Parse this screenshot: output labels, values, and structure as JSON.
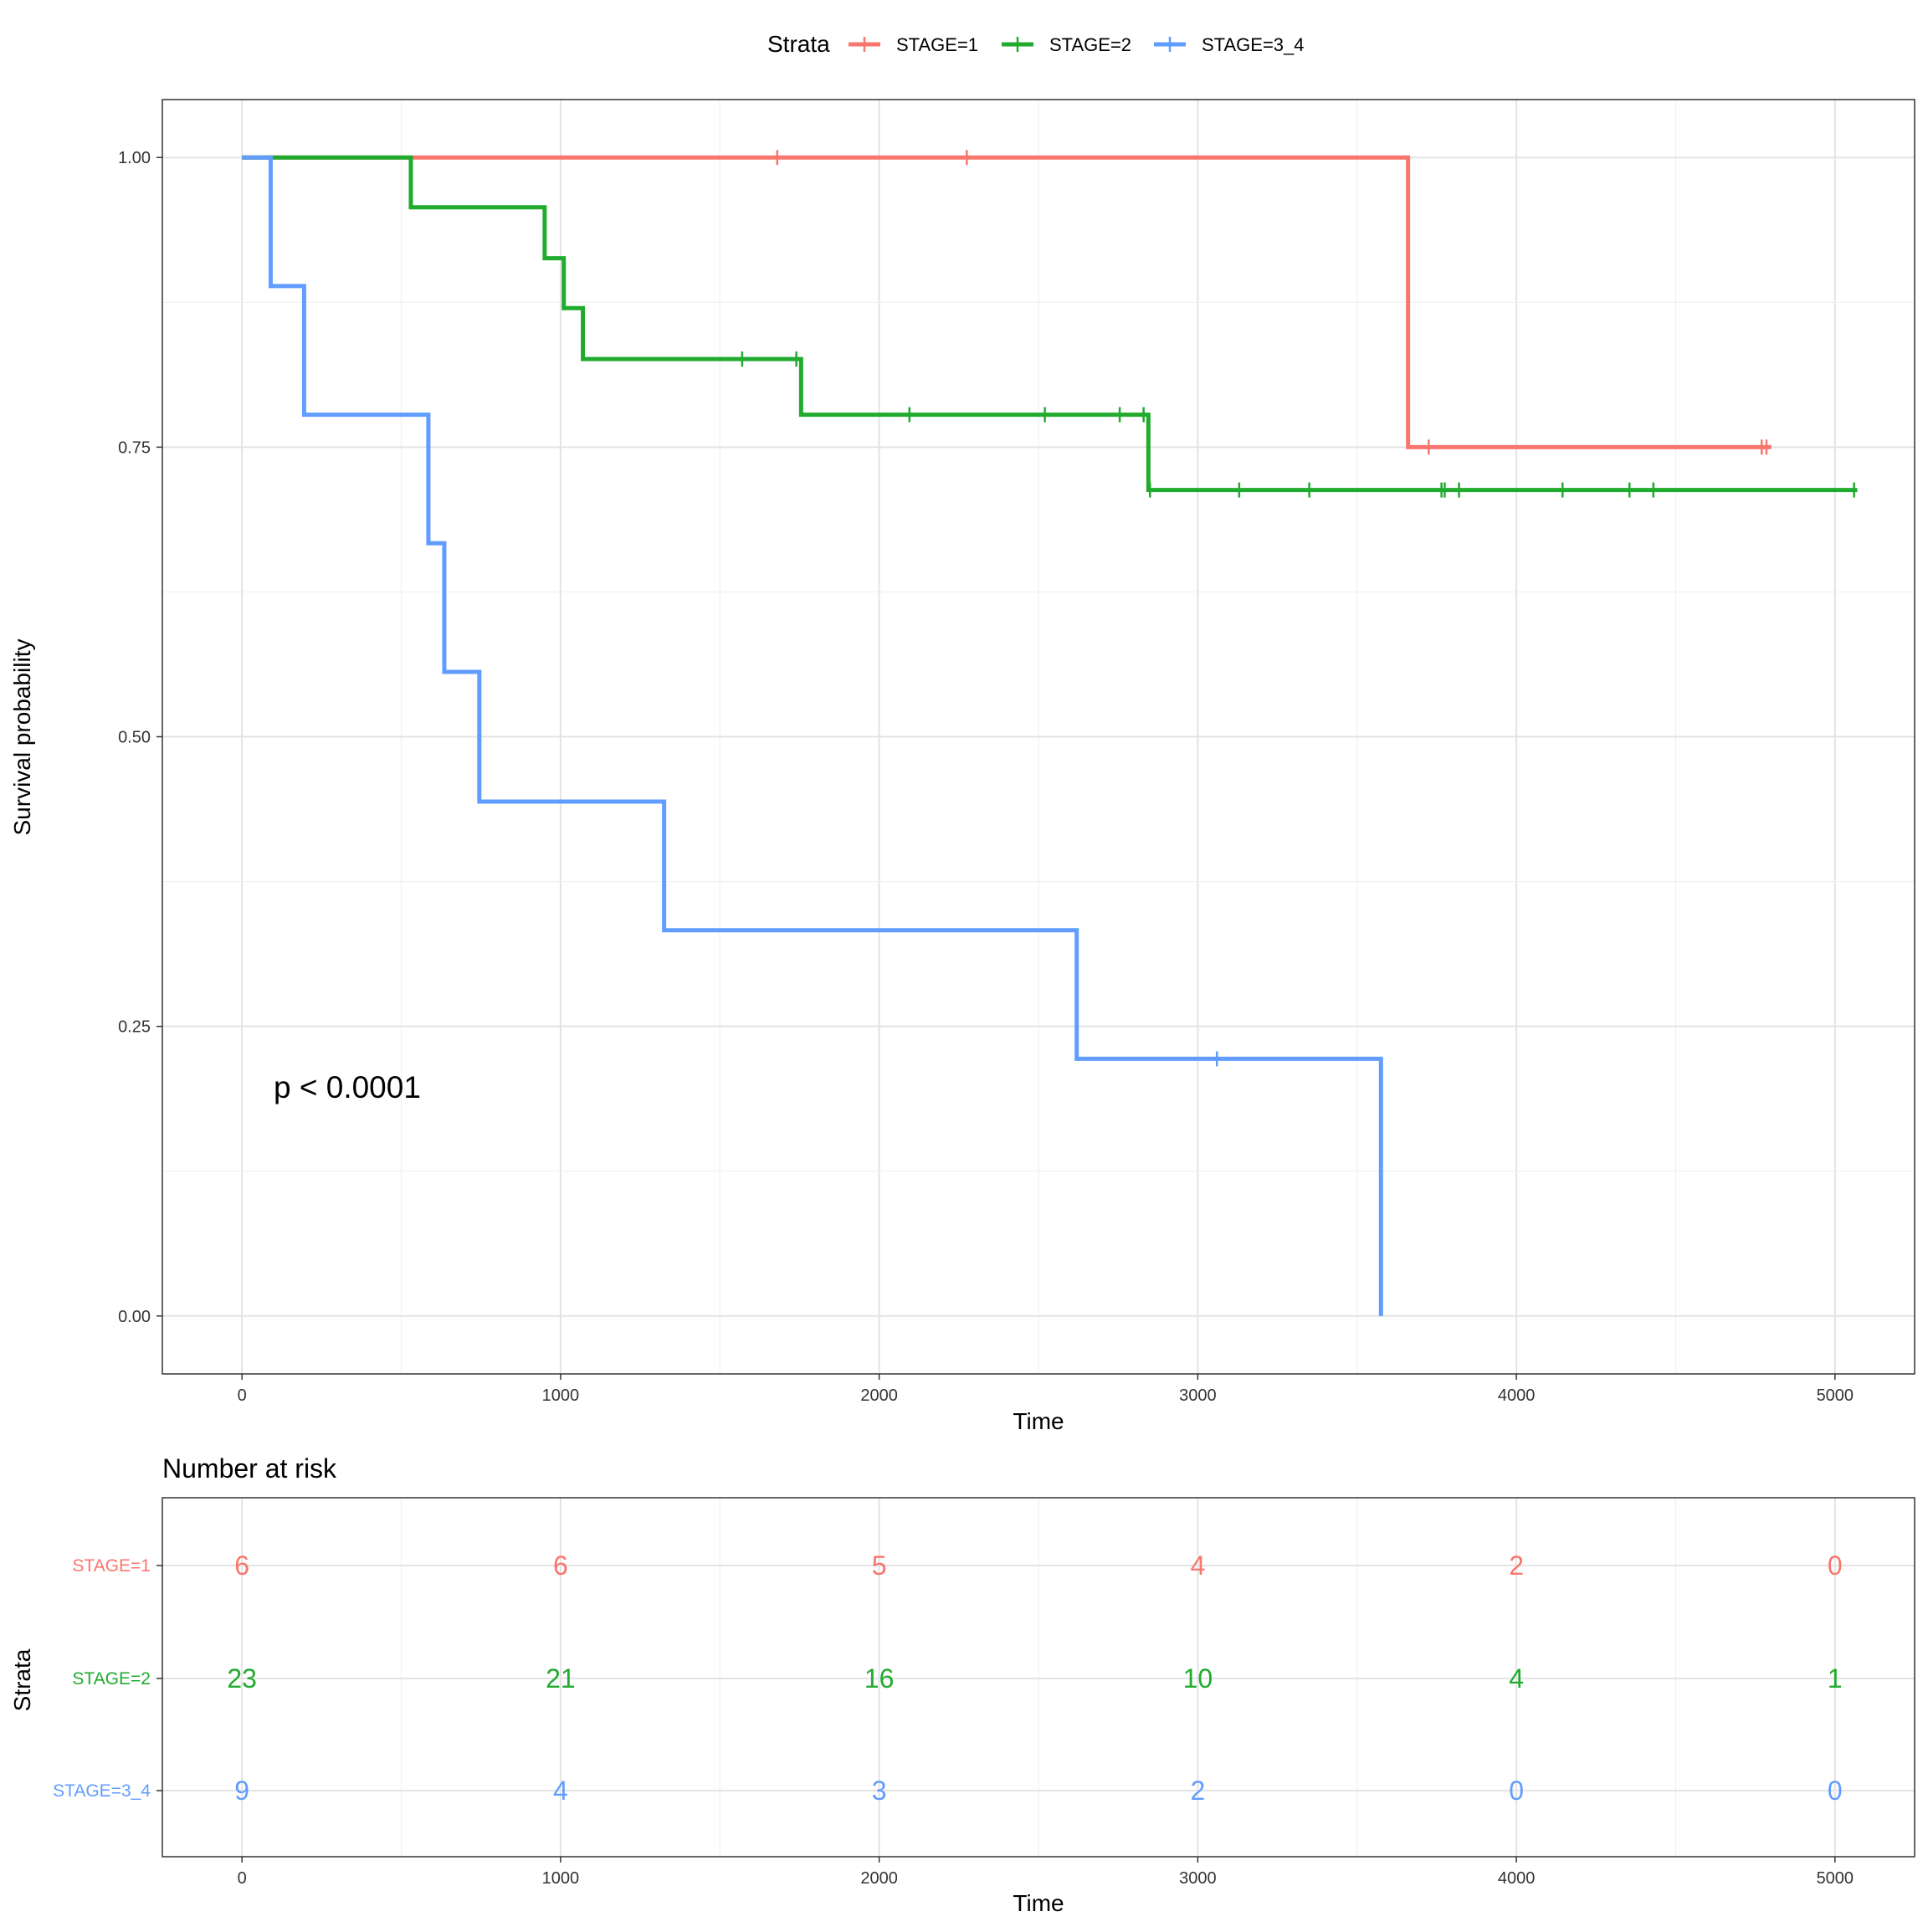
{
  "chart_data": [
    {
      "type": "line",
      "subtype": "kaplan-meier step",
      "xlabel": "Time",
      "ylabel": "Survival probability",
      "xlim": [
        -250,
        5250
      ],
      "ylim": [
        -0.05,
        1.05
      ],
      "x_ticks": [
        "0",
        "1000",
        "2000",
        "3000",
        "4000",
        "5000"
      ],
      "y_ticks": [
        "0.00",
        "0.25",
        "0.50",
        "0.75",
        "1.00"
      ],
      "grid": true,
      "annotation": "p < 0.0001",
      "legend": {
        "title": "Strata",
        "position": "top"
      },
      "series": [
        {
          "name": "STAGE=1",
          "color": "#F8766D",
          "steps": [
            [
              0,
              1.0
            ],
            [
              3660,
              0.75
            ],
            [
              4800,
              0.75
            ]
          ],
          "censored": [
            [
              1680,
              1.0
            ],
            [
              2275,
              1.0
            ],
            [
              3725,
              0.75
            ],
            [
              4770,
              0.75
            ],
            [
              4785,
              0.75
            ]
          ]
        },
        {
          "name": "STAGE=2",
          "color": "#21AB2E",
          "steps": [
            [
              0,
              1.0
            ],
            [
              530,
              0.957
            ],
            [
              950,
              0.913
            ],
            [
              1010,
              0.87
            ],
            [
              1070,
              0.826
            ],
            [
              1755,
              0.778
            ],
            [
              2845,
              0.713
            ],
            [
              5070,
              0.713
            ]
          ],
          "censored": [
            [
              1570,
              0.826
            ],
            [
              1740,
              0.826
            ],
            [
              2095,
              0.778
            ],
            [
              2520,
              0.778
            ],
            [
              2755,
              0.778
            ],
            [
              2830,
              0.778
            ],
            [
              2850,
              0.713
            ],
            [
              3130,
              0.713
            ],
            [
              3350,
              0.713
            ],
            [
              3765,
              0.713
            ],
            [
              3775,
              0.713
            ],
            [
              3820,
              0.713
            ],
            [
              4145,
              0.713
            ],
            [
              4355,
              0.713
            ],
            [
              4430,
              0.713
            ],
            [
              5060,
              0.713
            ]
          ]
        },
        {
          "name": "STAGE=3_4",
          "color": "#619CFF",
          "steps": [
            [
              0,
              1.0
            ],
            [
              90,
              0.889
            ],
            [
              195,
              0.778
            ],
            [
              585,
              0.667
            ],
            [
              635,
              0.556
            ],
            [
              745,
              0.444
            ],
            [
              1325,
              0.333
            ],
            [
              2620,
              0.222
            ],
            [
              3575,
              0.0
            ]
          ],
          "censored": [
            [
              3060,
              0.222
            ]
          ]
        }
      ]
    },
    {
      "type": "table",
      "title": "Number at risk",
      "xlabel": "Time",
      "ylabel": "Strata",
      "x_ticks": [
        "0",
        "1000",
        "2000",
        "3000",
        "4000",
        "5000"
      ],
      "x": [
        0,
        1000,
        2000,
        3000,
        4000,
        5000
      ],
      "rows": [
        {
          "name": "STAGE=1",
          "color": "#F8766D",
          "values": [
            "6",
            "6",
            "5",
            "4",
            "2",
            "0"
          ]
        },
        {
          "name": "STAGE=2",
          "color": "#21AB2E",
          "values": [
            "23",
            "21",
            "16",
            "10",
            "4",
            "1"
          ]
        },
        {
          "name": "STAGE=3_4",
          "color": "#619CFF",
          "values": [
            "9",
            "4",
            "3",
            "2",
            "0",
            "0"
          ]
        }
      ]
    }
  ]
}
